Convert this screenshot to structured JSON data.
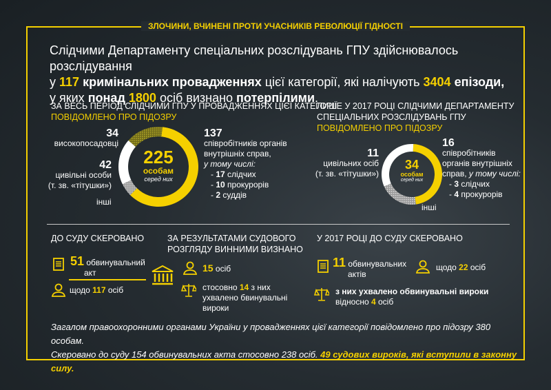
{
  "title": "ЗЛОЧИНИ, ВЧИНЕНІ ПРОТИ УЧАСНИКІВ РЕВОЛЮЦІЇ ГІДНОСТІ",
  "intro": {
    "l1": "Слідчими Департаменту спеціальних розслідувань ГПУ здійснювалось розслідування",
    "l2a": "у ",
    "l2b": "117",
    "l2c": " кримінальних провадженнях",
    "l2d": " цієї категорії, які налічують ",
    "l2e": "3404",
    "l2f": " епізоди,",
    "l3a": "у яких ",
    "l3b": "понад",
    "l3c": " ",
    "l3d": "1800",
    "l3e": " осіб визнано ",
    "l3f": "потерпілими",
    "l3g": "."
  },
  "colors": {
    "accent": "#f5d000",
    "background": "#242b30"
  },
  "all_time": {
    "heading1": "ЗА ВЕСЬ ПЕРІОД СЛІДЧИМИ ГПУ У ПРОВАДЖЕННЯХ ЦІЄЇ КАТЕГОРІЇ",
    "heading2": "ПОВІДОМЛЕНО ПРО ПІДОЗРУ",
    "total": "225",
    "total_unit": "особам",
    "among": "серед них",
    "officials_n": "34",
    "officials": "високопосадовці",
    "civil_n": "42",
    "civil1": "цивільні особи",
    "civil2": "(т. зв. «тітушки»)",
    "others": "інші",
    "police_n": "137",
    "police1": "співробітників органів",
    "police2": "внутрішніх справ,",
    "including": "у тому числі:",
    "sub": [
      {
        "n": "17",
        "t": "слідчих"
      },
      {
        "n": "10",
        "t": "прокурорів"
      },
      {
        "n": "2",
        "t": "суддів"
      }
    ],
    "segments": [
      {
        "label": "police",
        "value": 137,
        "color": "#f5d000"
      },
      {
        "label": "others",
        "value": 12,
        "color": "hatch-grey"
      },
      {
        "label": "civil",
        "value": 42,
        "color": "#ffffff"
      },
      {
        "label": "officials",
        "value": 34,
        "color": "hatch-olive"
      }
    ]
  },
  "y2017": {
    "heading1": "ЛИШЕ У 2017 РОЦІ СЛІДЧИМИ ДЕПАРТАМЕНТУ",
    "heading2": "СПЕЦІАЛЬНИХ РОЗСЛІДУВАНЬ ГПУ",
    "heading3": "ПОВІДОМЛЕНО ПРО ПІДОЗРУ",
    "total": "34",
    "total_unit": "особам",
    "among": "серед них",
    "civil_n": "11",
    "civil1": "цивільних осіб",
    "civil2": "(т. зв. «тітушки»)",
    "others": "інші",
    "police_n": "16",
    "police1": "співробітників",
    "police2": "органів внутрішніх",
    "police3a": "справ, ",
    "including": "у тому числі:",
    "sub": [
      {
        "n": "3",
        "t": "слідчих"
      },
      {
        "n": "4",
        "t": "прокурорів"
      }
    ],
    "segments": [
      {
        "label": "police",
        "value": 16,
        "color": "#f5d000"
      },
      {
        "label": "others",
        "value": 7,
        "color": "hatch-grey"
      },
      {
        "label": "civil",
        "value": 11,
        "color": "#ffffff"
      }
    ]
  },
  "court": {
    "h": "ДО СУДУ СКЕРОВАНО",
    "acts_n": "51",
    "acts1": "обвинувальний",
    "acts2": "акт",
    "persons_pre": "щодо ",
    "persons_n": "117",
    "persons_post": " осіб"
  },
  "verdict": {
    "h1": "ЗА РЕЗУЛЬТАТАМИ СУДОВОГО",
    "h2": "РОЗГЛЯДУ ВИННИМИ ВИЗНАНО",
    "guilty_n": "15",
    "guilty": " осіб",
    "v_pre": "стосовно ",
    "v_n": "14",
    "v_post": " з них",
    "v2": "ухвалено бвинувальні",
    "v3": "вироки"
  },
  "court2017": {
    "h": "У 2017 РОЦІ ДО СУДУ СКЕРОВАНО",
    "acts_n": "11",
    "acts1": "обвинувальних",
    "acts2": "актів",
    "persons_pre": "щодо ",
    "persons_n": "22",
    "persons_post": " осіб",
    "v1": "з них ухвалено обвинувальні вироки",
    "v_pre": "відносно ",
    "v_n": "4",
    "v_post": " осіб"
  },
  "footer": {
    "l1": "Загалом правоохоронними органами України у провадженнях цієї категорії повідомлено про підозру 380 особам.",
    "l2": "Скеровано до суду 154 обвинувальних акта стосовно 238 осіб. ",
    "l2y": "49 судових вироків, які вступили в законну силу."
  }
}
